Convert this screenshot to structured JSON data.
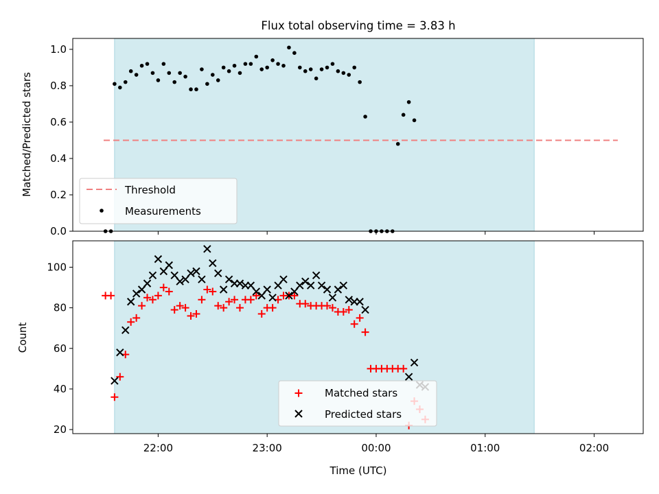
{
  "title": "Flux total observing time = 3.83 h",
  "colors": {
    "span": "#d3ebf0",
    "span_edge": "#a9d6df",
    "threshold": "#f08080",
    "matched": "#ff0000",
    "predicted": "#000000",
    "measurement": "#000000"
  },
  "chart_data": [
    {
      "type": "scatter",
      "ylabel": "Matched/Predicted stars",
      "ylim": [
        0,
        1.06
      ],
      "yticks": [
        "0.0",
        "0.2",
        "0.4",
        "0.6",
        "0.8",
        "1.0"
      ],
      "ytick_values": [
        0,
        0.2,
        0.4,
        0.6,
        0.8,
        1.0
      ],
      "xticks": [
        "22:00",
        "23:00",
        "00:00",
        "01:00",
        "02:00"
      ],
      "xtick_values": [
        "22:00",
        "23:00",
        "00:00",
        "01:00",
        "02:00"
      ],
      "xlim": [
        "21:13",
        "02:27"
      ],
      "observing_span": [
        "21:36",
        "01:27"
      ],
      "legend_position": "lower-left",
      "threshold": {
        "name": "Threshold",
        "y": 0.5,
        "x": [
          "21:30",
          "02:13"
        ]
      },
      "series": [
        {
          "name": "Measurements",
          "marker": "dot",
          "points": [
            [
              "21:31",
              0.0
            ],
            [
              "21:34",
              0.0
            ],
            [
              "21:36",
              0.81
            ],
            [
              "21:39",
              0.79
            ],
            [
              "21:42",
              0.82
            ],
            [
              "21:45",
              0.88
            ],
            [
              "21:48",
              0.86
            ],
            [
              "21:51",
              0.91
            ],
            [
              "21:54",
              0.92
            ],
            [
              "21:57",
              0.87
            ],
            [
              "22:00",
              0.83
            ],
            [
              "22:03",
              0.92
            ],
            [
              "22:06",
              0.87
            ],
            [
              "22:09",
              0.82
            ],
            [
              "22:12",
              0.87
            ],
            [
              "22:15",
              0.85
            ],
            [
              "22:18",
              0.78
            ],
            [
              "22:21",
              0.78
            ],
            [
              "22:24",
              0.89
            ],
            [
              "22:27",
              0.81
            ],
            [
              "22:30",
              0.86
            ],
            [
              "22:33",
              0.83
            ],
            [
              "22:36",
              0.9
            ],
            [
              "22:39",
              0.88
            ],
            [
              "22:42",
              0.91
            ],
            [
              "22:45",
              0.87
            ],
            [
              "22:48",
              0.92
            ],
            [
              "22:51",
              0.92
            ],
            [
              "22:54",
              0.96
            ],
            [
              "22:57",
              0.89
            ],
            [
              "23:00",
              0.9
            ],
            [
              "23:03",
              0.94
            ],
            [
              "23:06",
              0.92
            ],
            [
              "23:09",
              0.91
            ],
            [
              "23:12",
              1.01
            ],
            [
              "23:15",
              0.98
            ],
            [
              "23:18",
              0.9
            ],
            [
              "23:21",
              0.88
            ],
            [
              "23:24",
              0.89
            ],
            [
              "23:27",
              0.84
            ],
            [
              "23:30",
              0.89
            ],
            [
              "23:33",
              0.9
            ],
            [
              "23:36",
              0.92
            ],
            [
              "23:39",
              0.88
            ],
            [
              "23:42",
              0.87
            ],
            [
              "23:45",
              0.86
            ],
            [
              "23:48",
              0.9
            ],
            [
              "23:51",
              0.82
            ],
            [
              "23:54",
              0.63
            ],
            [
              "23:57",
              0.0
            ],
            [
              "00:00",
              0.0
            ],
            [
              "00:03",
              0.0
            ],
            [
              "00:06",
              0.0
            ],
            [
              "00:09",
              0.0
            ],
            [
              "00:12",
              0.48
            ],
            [
              "00:15",
              0.64
            ],
            [
              "00:18",
              0.71
            ],
            [
              "00:21",
              0.61
            ]
          ]
        }
      ]
    },
    {
      "type": "scatter",
      "ylabel": "Count",
      "xlabel": "Time (UTC)",
      "ylim": [
        18,
        113
      ],
      "yticks": [
        "20",
        "40",
        "60",
        "80",
        "100"
      ],
      "ytick_values": [
        20,
        40,
        60,
        80,
        100
      ],
      "xticks": [
        "22:00",
        "23:00",
        "00:00",
        "01:00",
        "02:00"
      ],
      "xtick_values": [
        "22:00",
        "23:00",
        "00:00",
        "01:00",
        "02:00"
      ],
      "xlim": [
        "21:13",
        "02:27"
      ],
      "observing_span": [
        "21:36",
        "01:27"
      ],
      "legend_position": "lower-center",
      "series": [
        {
          "name": "Matched stars",
          "marker": "plus",
          "points": [
            [
              "21:31",
              86
            ],
            [
              "21:34",
              86
            ],
            [
              "21:36",
              36
            ],
            [
              "21:39",
              46
            ],
            [
              "21:42",
              57
            ],
            [
              "21:45",
              73
            ],
            [
              "21:48",
              75
            ],
            [
              "21:51",
              81
            ],
            [
              "21:54",
              85
            ],
            [
              "21:57",
              84
            ],
            [
              "22:00",
              86
            ],
            [
              "22:03",
              90
            ],
            [
              "22:06",
              88
            ],
            [
              "22:09",
              79
            ],
            [
              "22:12",
              81
            ],
            [
              "22:15",
              80
            ],
            [
              "22:18",
              76
            ],
            [
              "22:21",
              77
            ],
            [
              "22:24",
              84
            ],
            [
              "22:27",
              89
            ],
            [
              "22:30",
              88
            ],
            [
              "22:33",
              81
            ],
            [
              "22:36",
              80
            ],
            [
              "22:39",
              83
            ],
            [
              "22:42",
              84
            ],
            [
              "22:45",
              80
            ],
            [
              "22:48",
              84
            ],
            [
              "22:51",
              84
            ],
            [
              "22:54",
              86
            ],
            [
              "22:57",
              77
            ],
            [
              "23:00",
              80
            ],
            [
              "23:03",
              80
            ],
            [
              "23:06",
              84
            ],
            [
              "23:09",
              86
            ],
            [
              "23:12",
              86
            ],
            [
              "23:15",
              86
            ],
            [
              "23:18",
              82
            ],
            [
              "23:21",
              82
            ],
            [
              "23:24",
              81
            ],
            [
              "23:27",
              81
            ],
            [
              "23:30",
              81
            ],
            [
              "23:33",
              81
            ],
            [
              "23:36",
              80
            ],
            [
              "23:39",
              78
            ],
            [
              "23:42",
              78
            ],
            [
              "23:45",
              79
            ],
            [
              "23:48",
              72
            ],
            [
              "23:51",
              75
            ],
            [
              "23:54",
              68
            ],
            [
              "23:57",
              50
            ],
            [
              "00:00",
              50
            ],
            [
              "00:03",
              50
            ],
            [
              "00:06",
              50
            ],
            [
              "00:09",
              50
            ],
            [
              "00:12",
              50
            ],
            [
              "00:15",
              50
            ],
            [
              "00:18",
              22
            ],
            [
              "00:21",
              34
            ],
            [
              "00:24",
              30
            ],
            [
              "00:27",
              25
            ]
          ]
        },
        {
          "name": "Predicted stars",
          "marker": "cross",
          "points": [
            [
              "21:36",
              44
            ],
            [
              "21:39",
              58
            ],
            [
              "21:42",
              69
            ],
            [
              "21:45",
              83
            ],
            [
              "21:48",
              87
            ],
            [
              "21:51",
              89
            ],
            [
              "21:54",
              92
            ],
            [
              "21:57",
              96
            ],
            [
              "22:00",
              104
            ],
            [
              "22:03",
              98
            ],
            [
              "22:06",
              101
            ],
            [
              "22:09",
              96
            ],
            [
              "22:12",
              93
            ],
            [
              "22:15",
              94
            ],
            [
              "22:18",
              97
            ],
            [
              "22:21",
              98
            ],
            [
              "22:24",
              94
            ],
            [
              "22:27",
              109
            ],
            [
              "22:30",
              102
            ],
            [
              "22:33",
              97
            ],
            [
              "22:36",
              89
            ],
            [
              "22:39",
              94
            ],
            [
              "22:42",
              92
            ],
            [
              "22:45",
              92
            ],
            [
              "22:48",
              91
            ],
            [
              "22:51",
              91
            ],
            [
              "22:54",
              88
            ],
            [
              "22:57",
              86
            ],
            [
              "23:00",
              89
            ],
            [
              "23:03",
              85
            ],
            [
              "23:06",
              91
            ],
            [
              "23:09",
              94
            ],
            [
              "23:12",
              86
            ],
            [
              "23:15",
              88
            ],
            [
              "23:18",
              91
            ],
            [
              "23:21",
              93
            ],
            [
              "23:24",
              91
            ],
            [
              "23:27",
              96
            ],
            [
              "23:30",
              91
            ],
            [
              "23:33",
              89
            ],
            [
              "23:36",
              85
            ],
            [
              "23:39",
              89
            ],
            [
              "23:42",
              91
            ],
            [
              "23:45",
              84
            ],
            [
              "23:48",
              83
            ],
            [
              "23:51",
              83
            ],
            [
              "23:54",
              79
            ],
            [
              "00:18",
              46
            ],
            [
              "00:21",
              53
            ],
            [
              "00:24",
              42
            ],
            [
              "00:27",
              41
            ]
          ]
        }
      ]
    }
  ]
}
